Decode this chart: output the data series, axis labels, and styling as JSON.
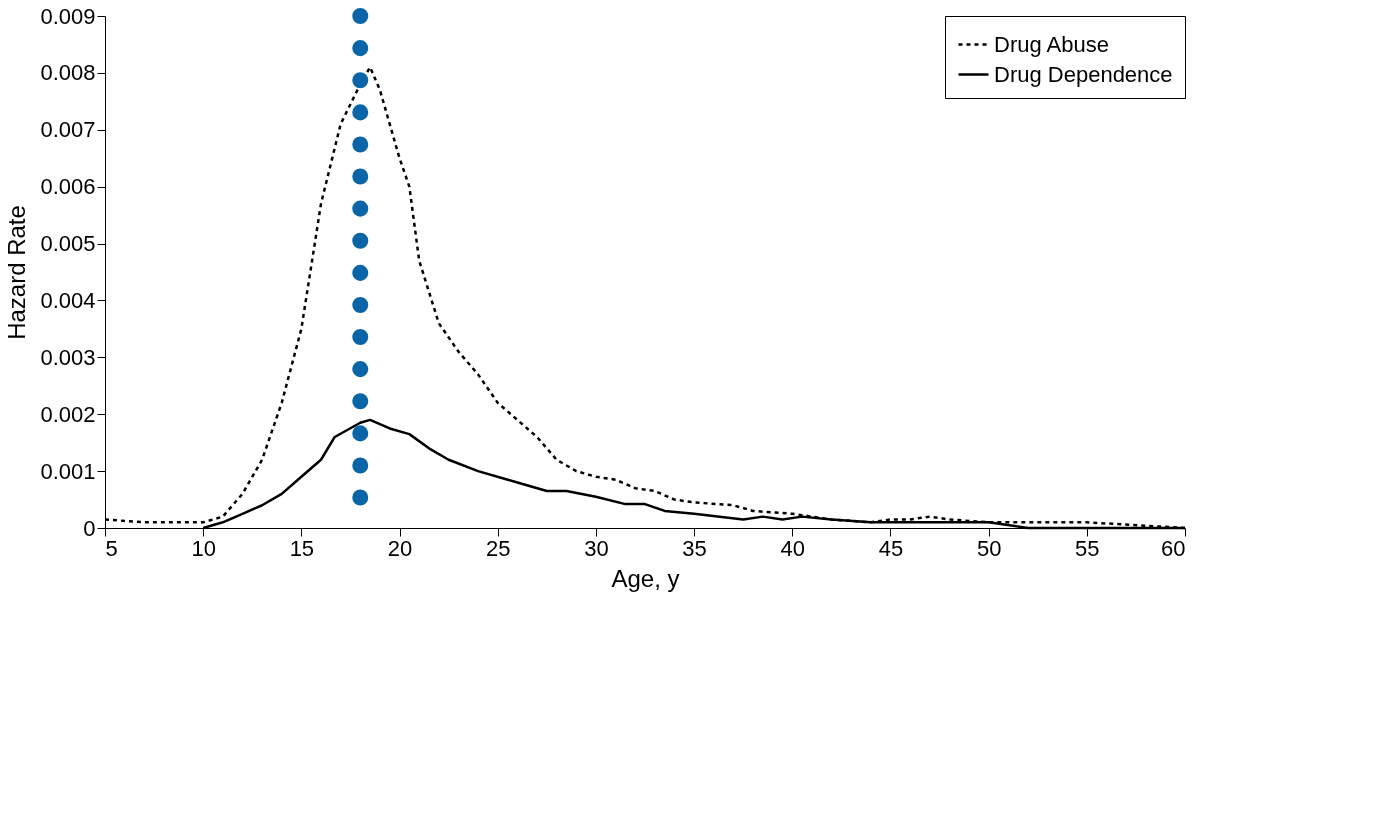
{
  "chart_data": {
    "type": "line",
    "xlabel": "Age, y",
    "ylabel": "Hazard Rate",
    "xlim": [
      5,
      60
    ],
    "xticks": [
      5,
      10,
      15,
      20,
      25,
      30,
      35,
      40,
      45,
      50,
      55,
      60
    ],
    "ylim": [
      0,
      0.009
    ],
    "yticks": [
      0,
      0.001,
      0.002,
      0.003,
      0.004,
      0.005,
      0.006,
      0.007,
      0.008,
      0.009
    ],
    "grid": false,
    "legend": "top right",
    "marker": "none",
    "series": [
      {
        "name": "Drug Abuse",
        "color": "#000000",
        "line_style": "dashed",
        "x": [
          5,
          7,
          9,
          10,
          11,
          12,
          13,
          14,
          15,
          16,
          17,
          18,
          18.5,
          19,
          20,
          20.5,
          21,
          22,
          23,
          24,
          25,
          26,
          27,
          28,
          29,
          30,
          31,
          32,
          33,
          34,
          35,
          37,
          38,
          40,
          42,
          44,
          45,
          46,
          47,
          48,
          50,
          52,
          55,
          60
        ],
        "values": [
          0.00015,
          0.0001,
          0.0001,
          0.0001,
          0.0002,
          0.0006,
          0.0012,
          0.0022,
          0.0035,
          0.0057,
          0.0071,
          0.0078,
          0.0081,
          0.0077,
          0.0065,
          0.006,
          0.0047,
          0.0036,
          0.0031,
          0.0027,
          0.0022,
          0.0019,
          0.0016,
          0.0012,
          0.001,
          0.0009,
          0.00085,
          0.0007,
          0.00065,
          0.0005,
          0.00045,
          0.0004,
          0.0003,
          0.00025,
          0.00015,
          0.0001,
          0.00015,
          0.00015,
          0.0002,
          0.00015,
          0.0001,
          0.0001,
          0.0001,
          0
        ]
      },
      {
        "name": "Drug Dependence",
        "color": "#000000",
        "line_style": "solid",
        "x": [
          10,
          11,
          12,
          13,
          14,
          15,
          16,
          16.7,
          18,
          18.5,
          19.5,
          20.5,
          21.5,
          22.5,
          24,
          26,
          27.5,
          28.5,
          30,
          31.5,
          32.5,
          33.5,
          35,
          37.5,
          38.5,
          39.5,
          40.5,
          42,
          44,
          45,
          47,
          50,
          52,
          60
        ],
        "values": [
          0,
          0.0001,
          0.00025,
          0.0004,
          0.0006,
          0.0009,
          0.0012,
          0.0016,
          0.00185,
          0.0019,
          0.00175,
          0.00165,
          0.0014,
          0.0012,
          0.001,
          0.0008,
          0.00065,
          0.00065,
          0.00055,
          0.00042,
          0.00042,
          0.0003,
          0.00025,
          0.00015,
          0.0002,
          0.00015,
          0.0002,
          0.00015,
          0.0001,
          0.0001,
          0.0001,
          0.0001,
          0,
          0
        ]
      }
    ],
    "ref_lines": [
      {
        "axis": "x",
        "value": 18,
        "label": null,
        "color": "#0a65a8",
        "line_style": "dotted"
      }
    ]
  }
}
